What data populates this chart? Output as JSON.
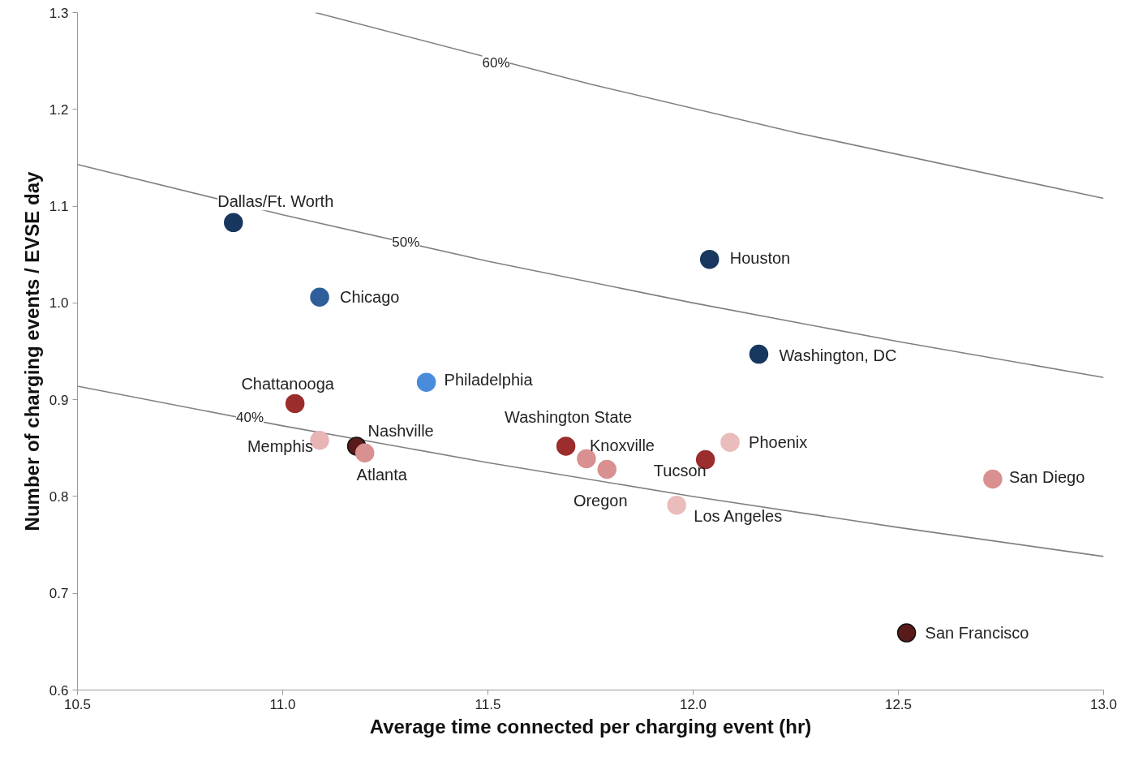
{
  "chart_data": {
    "type": "scatter",
    "xlabel": "Average time connected per charging event (hr)",
    "ylabel": "Number of charging events / EVSE day",
    "xlim": [
      10.5,
      13.0
    ],
    "ylim": [
      0.6,
      1.3
    ],
    "xticks": [
      10.5,
      {
        "value": 11,
        "label": "11.0"
      },
      11.5,
      {
        "value": 12,
        "label": "12.0"
      },
      12.5,
      {
        "value": 13,
        "label": "13.0"
      }
    ],
    "yticks": [
      0.6,
      0.7,
      0.8,
      0.9,
      {
        "value": 1,
        "label": "1.0"
      },
      1.1,
      1.2,
      1.3
    ],
    "grid": false,
    "series": [
      {
        "type": "line",
        "marker": "none",
        "color": "#808080",
        "x": [
          11.08,
          11.75,
          12.25,
          13.0
        ],
        "values": [
          1.3,
          1.226,
          1.176,
          1.108
        ]
      },
      {
        "type": "line",
        "marker": "none",
        "color": "#808080",
        "x": [
          10.5,
          11.0,
          11.5,
          12.0,
          12.5,
          13.0
        ],
        "values": [
          1.143,
          1.091,
          1.043,
          1.0,
          0.96,
          0.923
        ]
      },
      {
        "type": "line",
        "marker": "none",
        "color": "#808080",
        "x": [
          10.5,
          11.0,
          11.5,
          12.0,
          12.5,
          13.0
        ],
        "values": [
          0.914,
          0.873,
          0.835,
          0.8,
          0.768,
          0.738
        ]
      },
      {
        "marker": "circle",
        "x": [
          10.88,
          11.09,
          11.35,
          12.04,
          12.16,
          11.03,
          11.09,
          11.18,
          11.2,
          11.69,
          11.74,
          11.79,
          11.96,
          12.03,
          12.09,
          12.73,
          12.52
        ],
        "values": [
          1.083,
          1.006,
          0.918,
          1.045,
          0.947,
          0.896,
          0.858,
          0.852,
          0.845,
          0.852,
          0.839,
          0.828,
          0.791,
          0.838,
          0.856,
          0.818,
          0.659
        ],
        "colors": [
          "#17375e",
          "#2e5f9a",
          "#4a8cdb",
          "#17375e",
          "#17375e",
          "#9b2d2d",
          "#e8b4b4",
          "#5a1a1a",
          "#d99090",
          "#9b2d2d",
          "#d99090",
          "#d99090",
          "#eabcbc",
          "#9b2d2d",
          "#eabcbc",
          "#d99090",
          "#5a1a1a"
        ]
      }
    ],
    "annotations": [
      {
        "text": "60%",
        "x": 11.52,
        "y": 1.248
      },
      {
        "text": "50%",
        "x": 11.3,
        "y": 1.063
      },
      {
        "text": "40%",
        "x": 10.92,
        "y": 0.882
      },
      {
        "text": "Dallas/Ft. Worth",
        "x": 10.88,
        "y": 1.083
      },
      {
        "text": "Chicago",
        "x": 11.09,
        "y": 1.006
      },
      {
        "text": "Philadelphia",
        "x": 11.35,
        "y": 0.918
      },
      {
        "text": "Houston",
        "x": 12.04,
        "y": 1.045
      },
      {
        "text": "Washington, DC",
        "x": 12.16,
        "y": 0.947
      },
      {
        "text": "Chattanooga",
        "x": 11.03,
        "y": 0.896
      },
      {
        "text": "Memphis",
        "x": 11.09,
        "y": 0.858
      },
      {
        "text": "Nashville",
        "x": 11.18,
        "y": 0.852
      },
      {
        "text": "Atlanta",
        "x": 11.2,
        "y": 0.845
      },
      {
        "text": "Washington State",
        "x": 11.69,
        "y": 0.852
      },
      {
        "text": "Knoxville",
        "x": 11.74,
        "y": 0.839
      },
      {
        "text": "Oregon",
        "x": 11.79,
        "y": 0.828
      },
      {
        "text": "Los Angeles",
        "x": 11.96,
        "y": 0.791
      },
      {
        "text": "Tucson",
        "x": 12.03,
        "y": 0.838
      },
      {
        "text": "Phoenix",
        "x": 12.09,
        "y": 0.856
      },
      {
        "text": "San Diego",
        "x": 12.73,
        "y": 0.818
      },
      {
        "text": "San Francisco",
        "x": 12.52,
        "y": 0.659
      }
    ]
  }
}
